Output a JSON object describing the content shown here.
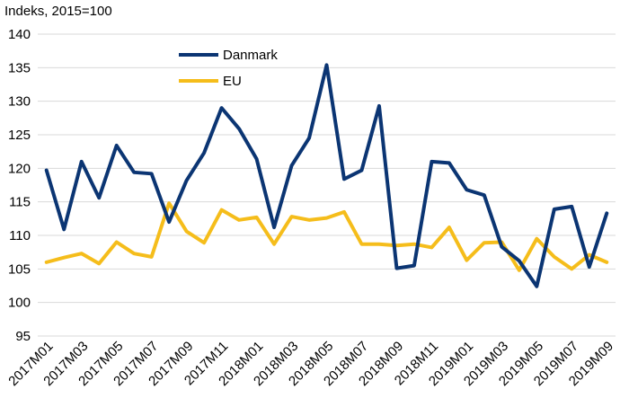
{
  "chart_data": {
    "type": "line",
    "ylabel": "Indeks, 2015=100",
    "ylim": [
      95,
      140
    ],
    "yticks": [
      95,
      100,
      105,
      110,
      115,
      120,
      125,
      130,
      135,
      140
    ],
    "grid": true,
    "legend_position": "top-left",
    "x": [
      "2017M01",
      "2017M02",
      "2017M03",
      "2017M04",
      "2017M05",
      "2017M06",
      "2017M07",
      "2017M08",
      "2017M09",
      "2017M10",
      "2017M11",
      "2017M12",
      "2018M01",
      "2018M02",
      "2018M03",
      "2018M04",
      "2018M05",
      "2018M06",
      "2018M07",
      "2018M08",
      "2018M09",
      "2018M10",
      "2018M11",
      "2018M12",
      "2019M01",
      "2019M02",
      "2019M03",
      "2019M04",
      "2019M05",
      "2019M06",
      "2019M07",
      "2019M08",
      "2019M09"
    ],
    "xtick_labels": [
      "2017M01",
      "2017M03",
      "2017M05",
      "2017M07",
      "2017M09",
      "2017M11",
      "2018M01",
      "2018M03",
      "2018M05",
      "2018M07",
      "2018M09",
      "2018M11",
      "2019M01",
      "2019M03",
      "2019M05",
      "2019M07",
      "2019M09"
    ],
    "series": [
      {
        "name": "Danmark",
        "color": "#0b3573",
        "values": [
          119.7,
          110.9,
          121.0,
          115.6,
          123.4,
          119.4,
          119.2,
          112.0,
          118.2,
          122.3,
          129.0,
          125.9,
          121.4,
          111.2,
          120.4,
          124.5,
          135.4,
          118.4,
          119.7,
          129.3,
          105.1,
          105.5,
          121.0,
          120.8,
          116.8,
          116.0,
          108.3,
          106.2,
          102.4,
          113.9,
          114.3,
          105.3,
          113.3
        ]
      },
      {
        "name": "EU",
        "color": "#f5bd1b",
        "values": [
          106.0,
          106.7,
          107.3,
          105.8,
          109.0,
          107.3,
          106.8,
          114.8,
          110.6,
          108.9,
          113.8,
          112.3,
          112.7,
          108.7,
          112.8,
          112.3,
          112.6,
          113.5,
          108.7,
          108.7,
          108.5,
          108.7,
          108.2,
          111.2,
          106.3,
          108.9,
          109.0,
          104.8,
          109.5,
          106.8,
          105.0,
          107.1,
          106.0
        ]
      }
    ]
  }
}
